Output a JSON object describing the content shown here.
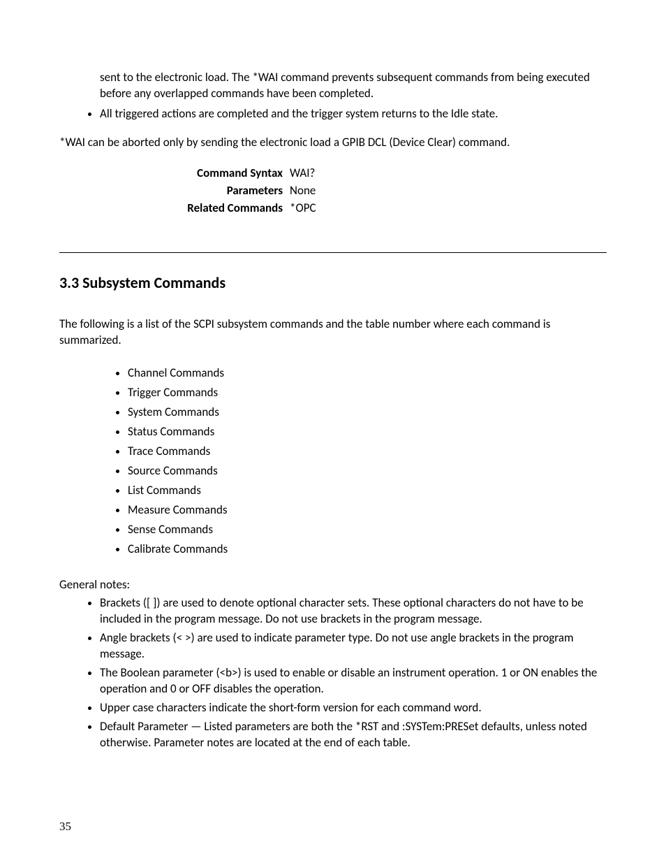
{
  "top_section": {
    "continuation": "sent to the electronic load. The *WAI command prevents subsequent commands from being executed before any overlapped commands have been completed.",
    "bullet1": "All triggered actions are completed and the trigger system returns to the Idle state.",
    "after_list": "*WAI can be aborted only by sending the electronic load a GPIB DCL (Device Clear) command.",
    "syntax_rows": [
      {
        "label": "Command Syntax",
        "value": "WAI?"
      },
      {
        "label": "Parameters",
        "value": "None"
      },
      {
        "label": "Related Commands",
        "value": "*OPC"
      }
    ]
  },
  "section": {
    "heading": "3.3 Subsystem Commands",
    "intro": "The following is a list of the SCPI subsystem commands and the table number where each command is summarized.",
    "commands": [
      "Channel Commands",
      "Trigger Commands",
      "System Commands",
      "Status Commands",
      "Trace Commands",
      "Source Commands",
      "List Commands",
      "Measure Commands",
      "Sense Commands",
      "Calibrate Commands"
    ],
    "notes_heading": "General notes:",
    "notes": [
      "Brackets ([ ]) are used to denote optional character sets. These optional characters do not have to be included in the program message. Do not use brackets in the program message.",
      "Angle brackets (< >) are used to indicate parameter type. Do not use angle brackets in the program message.",
      "The Boolean parameter (<b>) is used to enable or disable an instrument operation. 1 or ON enables the operation and 0 or OFF disables the operation.",
      "Upper case characters indicate the short-form version for each command word.",
      "Default Parameter — Listed parameters are both the *RST and :SYSTem:PRESet defaults, unless noted otherwise. Parameter notes are located at the end of each table."
    ]
  },
  "page_number": "35"
}
